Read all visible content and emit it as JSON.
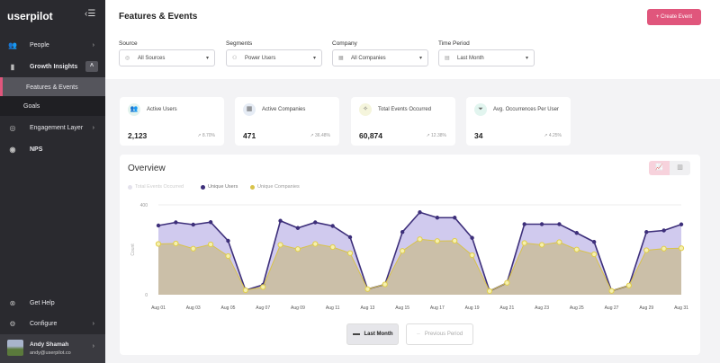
{
  "sidebar": {
    "logo": "userpilot",
    "items": [
      {
        "label": "People",
        "icon": "people-icon"
      },
      {
        "label": "Growth Insights",
        "icon": "bar-chart-icon"
      },
      {
        "label": "Engagement Layer",
        "icon": "layers-icon"
      },
      {
        "label": "NPS",
        "icon": "nps-icon"
      }
    ],
    "subitems": [
      {
        "label": "Features & Events",
        "active": true
      },
      {
        "label": "Goals"
      }
    ],
    "bottom": [
      {
        "label": "Get Help",
        "icon": "help-icon"
      },
      {
        "label": "Configure",
        "icon": "gear-icon"
      }
    ],
    "user": {
      "name": "Andy Shamah",
      "email": "andy@userpilot.co"
    }
  },
  "header": {
    "title": "Features & Events",
    "create_label": "+ Create Event"
  },
  "filters": [
    {
      "label": "Source",
      "value": "All Sources"
    },
    {
      "label": "Segments",
      "value": "Power Users"
    },
    {
      "label": "Company",
      "value": "All Companies"
    },
    {
      "label": "Time Period",
      "value": "Last Month"
    }
  ],
  "cards": [
    {
      "label": "Active Users",
      "value": "2,123",
      "change": "8.70%",
      "icon": "users-icon",
      "color": "#e3f3ee"
    },
    {
      "label": "Active Companies",
      "value": "471",
      "change": "36.48%",
      "icon": "building-icon",
      "color": "#e6ecf5"
    },
    {
      "label": "Total Events Occurred",
      "value": "60,874",
      "change": "12.38%",
      "icon": "event-icon",
      "color": "#f5f5dc"
    },
    {
      "label": "Avg. Occurrences Per User",
      "value": "34",
      "change": "4.25%",
      "icon": "filter-icon",
      "color": "#e2f5ef"
    }
  ],
  "overview": {
    "title": "Overview",
    "last_month": "Last Month",
    "previous_period": "Previous Period"
  },
  "chart_data": {
    "type": "area",
    "ylabel": "Count",
    "ylim": [
      0,
      400
    ],
    "yticks": [
      "0",
      "400"
    ],
    "grid": true,
    "legend_position": "top-left",
    "xticks": [
      "Aug 01",
      "Aug 03",
      "Aug 05",
      "Aug 07",
      "Aug 09",
      "Aug 11",
      "Aug 13",
      "Aug 15",
      "Aug 17",
      "Aug 19",
      "Aug 21",
      "Aug 23",
      "Aug 25",
      "Aug 27",
      "Aug 29",
      "Aug 31"
    ],
    "series": [
      {
        "name": "Total Events Occurred",
        "hidden": true,
        "color": "#d9d6e6",
        "values": []
      },
      {
        "name": "Unique Users",
        "color": "#3d2f7a",
        "fill": "#cbc4ec",
        "values": [
          308,
          322,
          312,
          323,
          240,
          20,
          44,
          329,
          297,
          322,
          306,
          256,
          25,
          46,
          279,
          367,
          343,
          343,
          253,
          16,
          53,
          314,
          314,
          314,
          275,
          235,
          17,
          41,
          279,
          286,
          313
        ]
      },
      {
        "name": "Unique Companies",
        "color": "#d8c34a",
        "fill": "#cbbfa8",
        "values": [
          226,
          228,
          205,
          224,
          172,
          20,
          34,
          222,
          203,
          226,
          212,
          185,
          25,
          46,
          195,
          247,
          239,
          240,
          176,
          16,
          53,
          230,
          222,
          234,
          201,
          180,
          17,
          41,
          198,
          205,
          207
        ]
      }
    ]
  }
}
